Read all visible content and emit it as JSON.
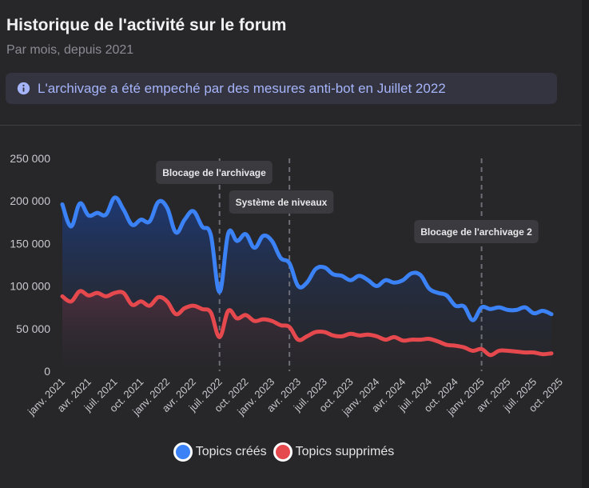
{
  "header": {
    "title": "Historique de l'activité sur le forum",
    "subtitle": "Par mois, depuis 2021"
  },
  "notice": {
    "icon": "info-icon",
    "text": "L'archivage a été empeché par des mesures anti-bot en Juillet 2022"
  },
  "colors": {
    "created": "#3b82f6",
    "deleted": "#e5484d"
  },
  "chart_data": {
    "type": "area",
    "ylim": [
      0,
      250000
    ],
    "yticks": [
      0,
      50000,
      100000,
      150000,
      200000,
      250000
    ],
    "ytick_labels": [
      "0",
      "50 000",
      "100 000",
      "150 000",
      "200 000",
      "250 000"
    ],
    "x_tick_labels": [
      {
        "index": 0,
        "label": "janv. 2021"
      },
      {
        "index": 3,
        "label": "avr. 2021"
      },
      {
        "index": 6,
        "label": "juil. 2021"
      },
      {
        "index": 9,
        "label": "oct. 2021"
      },
      {
        "index": 12,
        "label": "janv. 2022"
      },
      {
        "index": 15,
        "label": "avr. 2022"
      },
      {
        "index": 18,
        "label": "juil. 2022"
      },
      {
        "index": 21,
        "label": "oct. 2022"
      },
      {
        "index": 24,
        "label": "janv. 2023"
      },
      {
        "index": 27,
        "label": "avr. 2023"
      },
      {
        "index": 30,
        "label": "juil. 2023"
      },
      {
        "index": 33,
        "label": "oct. 2023"
      },
      {
        "index": 36,
        "label": "janv. 2024"
      },
      {
        "index": 39,
        "label": "avr. 2024"
      },
      {
        "index": 42,
        "label": "juil. 2024"
      },
      {
        "index": 45,
        "label": "oct. 2024"
      },
      {
        "index": 48,
        "label": "janv. 2025"
      },
      {
        "index": 51,
        "label": "avr. 2025"
      },
      {
        "index": 54,
        "label": "juil. 2025"
      },
      {
        "index": 57,
        "label": "oct. 2025"
      }
    ],
    "series": [
      {
        "name": "Topics créés",
        "values": [
          196000,
          170000,
          197000,
          183000,
          186000,
          184000,
          204000,
          190000,
          172000,
          178000,
          176000,
          199000,
          192000,
          163000,
          178000,
          188000,
          170000,
          160000,
          93000,
          162000,
          153000,
          161000,
          145000,
          159000,
          153000,
          133000,
          127000,
          100000,
          104000,
          120000,
          122000,
          114000,
          112000,
          107000,
          112000,
          107000,
          100000,
          107000,
          104000,
          107000,
          115000,
          113000,
          97000,
          92000,
          89000,
          77000,
          76000,
          60000,
          75000,
          73000,
          75000,
          72000,
          72000,
          75000,
          68000,
          71000,
          67000
        ]
      },
      {
        "name": "Topics supprimés",
        "values": [
          88000,
          82000,
          94000,
          89000,
          92000,
          88000,
          92000,
          92000,
          78000,
          82000,
          77000,
          87000,
          82000,
          67000,
          74000,
          77000,
          73000,
          69000,
          40000,
          71000,
          62000,
          66000,
          59000,
          61000,
          59000,
          54000,
          52000,
          37000,
          41000,
          46000,
          46000,
          42000,
          41000,
          44000,
          42000,
          43000,
          41000,
          37000,
          40000,
          36000,
          37000,
          37000,
          38000,
          35000,
          31000,
          30000,
          28000,
          24000,
          26000,
          19000,
          24000,
          24000,
          23000,
          22000,
          22000,
          20000,
          21000
        ]
      }
    ],
    "annotations": [
      {
        "label": "Blocage de l'archivage",
        "index": 18
      },
      {
        "label": "Système de niveaux",
        "index": 26
      },
      {
        "label": "Blocage de l'archivage 2",
        "index": 48
      }
    ],
    "legend": [
      "Topics créés",
      "Topics supprimés"
    ]
  }
}
